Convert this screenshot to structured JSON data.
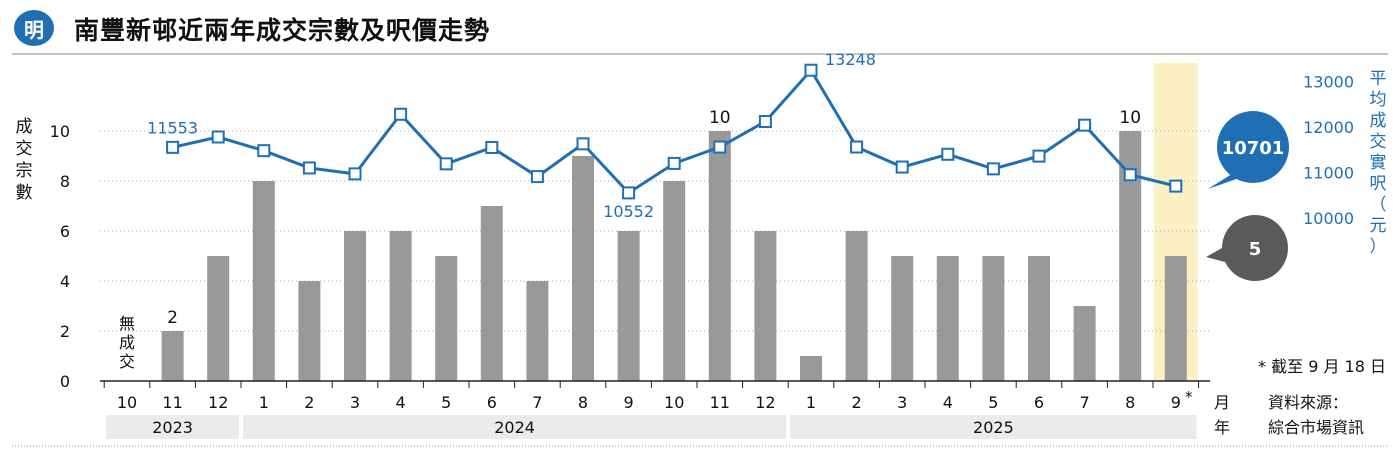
{
  "logo": "明",
  "title": "南豐新邨近兩年成交宗數及呎價走勢",
  "chart_data": {
    "type": "bar",
    "categories": [
      "10",
      "11",
      "12",
      "1",
      "2",
      "3",
      "4",
      "5",
      "6",
      "7",
      "8",
      "9",
      "10",
      "11",
      "12",
      "1",
      "2",
      "3",
      "4",
      "5",
      "6",
      "7",
      "8",
      "9"
    ],
    "series": [
      {
        "values": [
          0,
          2,
          5,
          8,
          4,
          6,
          6,
          5,
          7,
          4,
          9,
          6,
          8,
          10,
          6,
          1,
          6,
          5,
          5,
          5,
          5,
          3,
          10,
          5
        ]
      },
      {
        "type": "line",
        "values": [
          null,
          11553,
          11780,
          11480,
          11100,
          10970,
          12280,
          11190,
          11550,
          10910,
          11630,
          10552,
          11200,
          11560,
          12120,
          13248,
          11560,
          11120,
          11400,
          11080,
          11360,
          12040,
          10950,
          10701
        ]
      }
    ],
    "left_axis": {
      "label": "成交宗數",
      "ticks": [
        "0",
        "2",
        "4",
        "6",
        "8",
        "10"
      ],
      "ylim": [
        0,
        11
      ]
    },
    "right_axis": {
      "label": "平均成交實呎（元）",
      "ticks": [
        "10000",
        "11000",
        "12000",
        "13000"
      ]
    },
    "x_unit": "月",
    "year_unit": "年",
    "years": [
      {
        "label": "2023",
        "months": 3
      },
      {
        "label": "2024",
        "months": 12
      },
      {
        "label": "2025",
        "months": 9
      }
    ],
    "month_marks": {
      "23": "*"
    },
    "no_deal_note": [
      "無",
      "成",
      "交"
    ],
    "bar_value_labels": [
      {
        "index": 1,
        "label": "2"
      },
      {
        "index": 13,
        "label": "10"
      },
      {
        "index": 22,
        "label": "10"
      }
    ],
    "line_value_labels": [
      {
        "index": 1,
        "label": "11553"
      },
      {
        "index": 11,
        "label": "10552"
      },
      {
        "index": 15,
        "label": "13248"
      }
    ],
    "callouts": {
      "line": "10701",
      "bar": "5"
    },
    "highlight_index": 23,
    "footnote": "* 截至 9 月 18 日",
    "source": [
      "資料來源：",
      "綜合市場資訊"
    ],
    "colors": {
      "bar": "#999999",
      "line": "#1f6fb5",
      "highlight": "#fbf0c4",
      "year_band": "#ebebeb",
      "bar_callout": "#5a5a5a",
      "text": "#111111"
    }
  }
}
